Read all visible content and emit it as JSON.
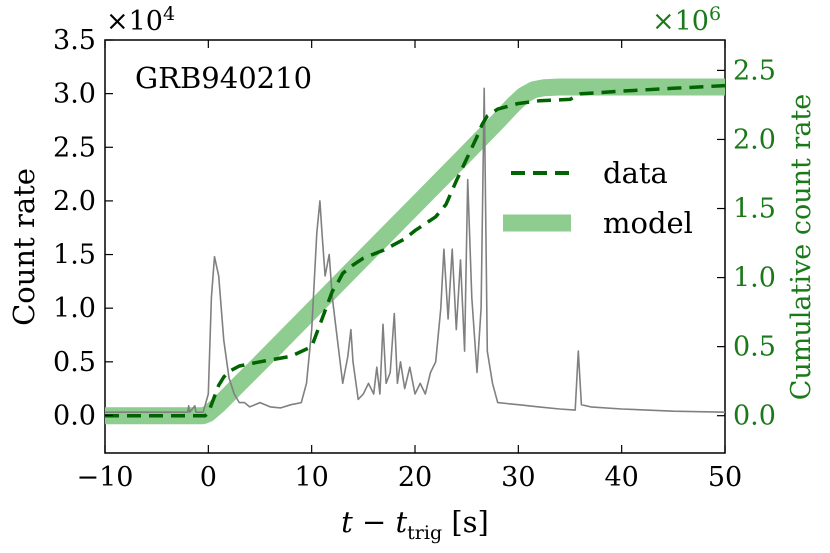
{
  "chart_data": {
    "type": "line",
    "title": "GRB940210",
    "xlabel_main": "t − t",
    "xlabel_sub": "trig",
    "xlabel_unit": " [s]",
    "ylabel": "Count rate",
    "ylabel_right": "Cumulative count rate",
    "left_multiplier_base": "×10",
    "left_multiplier_exp": "4",
    "right_multiplier_base": "×10",
    "right_multiplier_exp": "6",
    "xlim": [
      -10,
      50
    ],
    "ylim_left": [
      -0.35,
      3.5
    ],
    "ylim_right": [
      -0.27,
      2.72
    ],
    "xticks": [
      -10,
      0,
      10,
      20,
      30,
      40,
      50
    ],
    "xtick_labels": [
      "−10",
      "0",
      "10",
      "20",
      "30",
      "40",
      "50"
    ],
    "yticks_left": [
      0,
      0.5,
      1,
      1.5,
      2,
      2.5,
      3,
      3.5
    ],
    "ytick_labels_left": [
      "0.0",
      "0.5",
      "1.0",
      "1.5",
      "2.0",
      "2.5",
      "3.0",
      "3.5"
    ],
    "yticks_right": [
      0,
      0.5,
      1,
      1.5,
      2,
      2.5
    ],
    "ytick_labels_right": [
      "0.0",
      "0.5",
      "1.0",
      "1.5",
      "2.0",
      "2.5"
    ],
    "legend": {
      "placement": "right",
      "entries": [
        {
          "label": "data",
          "style": "dashed",
          "color": "#006400"
        },
        {
          "label": "model",
          "style": "thick",
          "color": "#8fcc8f"
        }
      ]
    },
    "colors": {
      "raw": "#808080",
      "data": "#006400",
      "model": "#8fcc8f",
      "right_axis": "#1a7a1a"
    },
    "series": [
      {
        "name": "model",
        "axis": "right",
        "x": [
          -10,
          -0.5,
          0,
          1,
          2,
          3,
          5,
          10,
          15,
          20,
          25,
          28,
          29.5,
          30.5,
          31.5,
          32.5,
          34,
          50
        ],
        "values": [
          0,
          0,
          0.015,
          0.08,
          0.155,
          0.23,
          0.38,
          0.76,
          1.14,
          1.52,
          1.9,
          2.13,
          2.25,
          2.32,
          2.36,
          2.375,
          2.38,
          2.38
        ]
      },
      {
        "name": "data",
        "axis": "right",
        "x": [
          -10,
          -0.3,
          0,
          0.5,
          1,
          1.5,
          2,
          3,
          5,
          8,
          10,
          11,
          12,
          12.5,
          13,
          14,
          15,
          17,
          19,
          20,
          22,
          23,
          24,
          25,
          26,
          26.5,
          27,
          28,
          30,
          32,
          35,
          36,
          40,
          45,
          50
        ],
        "values": [
          0,
          0,
          0.02,
          0.12,
          0.22,
          0.28,
          0.32,
          0.36,
          0.39,
          0.43,
          0.5,
          0.7,
          0.9,
          0.96,
          1.03,
          1.09,
          1.14,
          1.2,
          1.28,
          1.34,
          1.44,
          1.53,
          1.7,
          1.86,
          2.02,
          2.11,
          2.17,
          2.22,
          2.26,
          2.28,
          2.29,
          2.33,
          2.35,
          2.37,
          2.39
        ]
      },
      {
        "name": "count rate",
        "axis": "left",
        "x": [
          -10,
          -2,
          -1.9,
          -1.8,
          -1.3,
          -1.2,
          -0.5,
          0,
          0.3,
          0.6,
          1,
          1.5,
          2,
          2.5,
          3,
          3.5,
          4,
          5,
          6,
          7,
          8,
          9,
          9.5,
          10,
          10.5,
          10.8,
          11,
          11.3,
          11.7,
          12,
          12.5,
          13,
          13.5,
          13.8,
          14,
          14.5,
          15,
          15.5,
          16,
          16.3,
          16.6,
          16.9,
          17.2,
          17.6,
          18,
          18.3,
          18.6,
          19,
          19.5,
          20,
          20.5,
          21,
          21.5,
          22,
          22.5,
          22.8,
          23.2,
          23.6,
          24,
          24.4,
          24.8,
          25.1,
          25.5,
          26,
          26.4,
          26.7,
          27,
          27.5,
          28,
          30,
          32,
          34,
          35.5,
          35.8,
          36.1,
          37,
          40,
          45,
          50
        ],
        "values": [
          0.03,
          0.03,
          0.09,
          0.03,
          0.09,
          0.03,
          0.03,
          0.2,
          1.1,
          1.48,
          1.3,
          0.7,
          0.35,
          0.2,
          0.12,
          0.12,
          0.08,
          0.12,
          0.08,
          0.07,
          0.1,
          0.12,
          0.3,
          0.8,
          1.7,
          2.0,
          1.7,
          1.3,
          1.5,
          1.1,
          0.7,
          0.3,
          0.55,
          0.8,
          0.5,
          0.15,
          0.2,
          0.3,
          0.2,
          0.45,
          0.2,
          0.85,
          0.3,
          0.4,
          0.95,
          0.3,
          0.5,
          0.25,
          0.45,
          0.2,
          0.3,
          0.2,
          0.4,
          0.5,
          1.0,
          1.55,
          0.9,
          1.55,
          0.8,
          1.45,
          0.6,
          2.2,
          1.1,
          0.4,
          1.0,
          3.05,
          0.6,
          0.3,
          0.12,
          0.1,
          0.08,
          0.06,
          0.05,
          0.6,
          0.1,
          0.08,
          0.06,
          0.04,
          0.03
        ]
      }
    ]
  }
}
